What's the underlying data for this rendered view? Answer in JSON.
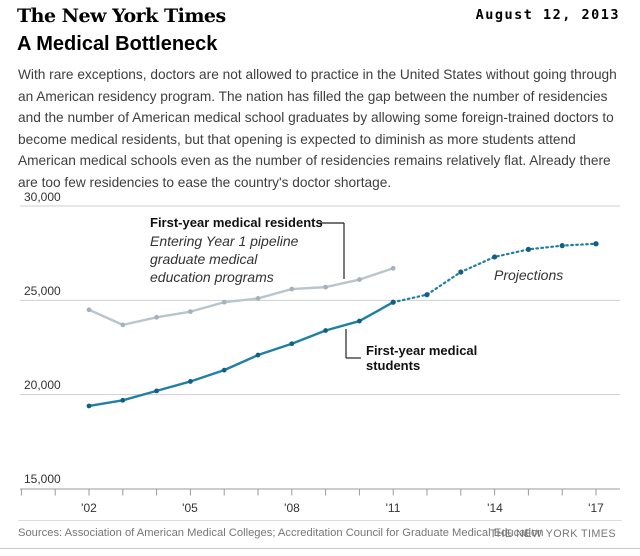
{
  "header": {
    "logo": "The New York Times",
    "date": "August 12, 2013"
  },
  "article": {
    "title": "A Medical Bottleneck",
    "body": "With rare exceptions, doctors are not allowed to practice in the United States without going through an American residency program. The nation has filled the gap between the number of residencies and the number of American medical school graduates by allowing some foreign-trained doctors to become medical residents, but that opening is expected to diminish as more students attend American medical schools even as the number of residencies remains relatively flat. Already there are too few residencies to ease the country's doctor shortage."
  },
  "chart_data": {
    "type": "line",
    "title": "A Medical Bottleneck",
    "ylim": [
      15000,
      30000
    ],
    "gridline_values": [
      30000,
      25000,
      20000
    ],
    "baseline_value": 15000,
    "ytick_labels": [
      "30,000",
      "25,000",
      "20,000",
      "15,000"
    ],
    "xtick_years": [
      2000,
      2017
    ],
    "xtick_labels": [
      "'02",
      "'05",
      "'08",
      "'11",
      "'14",
      "'17"
    ],
    "label_years": [
      2002,
      2005,
      2008,
      2011,
      2014,
      2017
    ],
    "grid_color": "#cfcfcf",
    "axis_color": "#9a9a9a",
    "series": [
      {
        "name": "First-year medical residents",
        "x": [
          2002,
          2003,
          2004,
          2005,
          2006,
          2007,
          2008,
          2009,
          2010,
          2011
        ],
        "values": [
          24500,
          23700,
          24100,
          24400,
          24900,
          25100,
          25600,
          25700,
          26100,
          26700
        ],
        "color": "#b9c5cc",
        "marker_color": "#a3b2bb",
        "dash": "",
        "width": 2.4,
        "marker_r": 2.4
      },
      {
        "name": "First-year medical students",
        "x": [
          2002,
          2003,
          2004,
          2005,
          2006,
          2007,
          2008,
          2009,
          2010,
          2011
        ],
        "values": [
          19400,
          19700,
          20200,
          20700,
          21300,
          22100,
          22700,
          23400,
          23900,
          24900
        ],
        "color": "#1f7fa4",
        "marker_color": "#135f82",
        "dash": "",
        "width": 2.4,
        "marker_r": 2.4
      },
      {
        "name": "Projections",
        "x": [
          2011,
          2012,
          2013,
          2014,
          2015,
          2016,
          2017
        ],
        "values": [
          24900,
          25300,
          26500,
          27300,
          27700,
          27900,
          28000
        ],
        "color": "#1f7fa4",
        "marker_color": "#135f82",
        "dash": "1.6 3.4",
        "width": 2.2,
        "marker_r": 2.6
      }
    ],
    "annotations": {
      "residents_label": "First-year medical residents",
      "residents_sublabel": "Entering Year 1 pipeline\ngraduate medical\neducation programs",
      "students_label": "First-year medical\nstudents",
      "projections_label": "Projections"
    }
  },
  "footer": {
    "sources": "Sources: Association of American Medical Colleges; Accreditation Council for Graduate Medical Education",
    "credit": "THE NEW YORK TIMES"
  }
}
